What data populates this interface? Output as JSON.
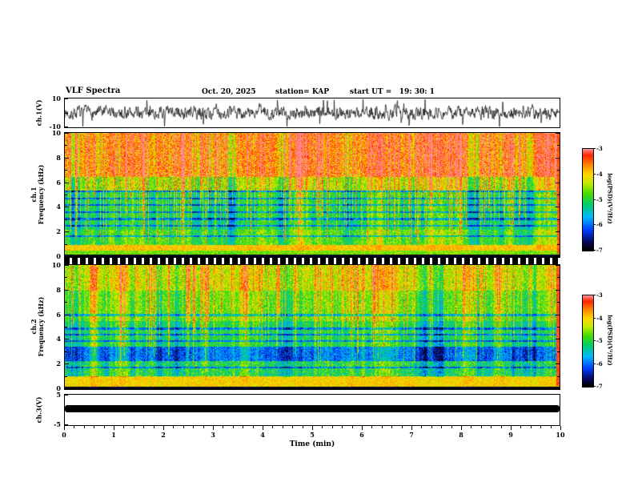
{
  "header": {
    "title": "VLF Spectra",
    "date": "Oct. 20, 2025",
    "station": "station= KAP",
    "start_ut": "start UT =   19: 30: 1"
  },
  "labels": {
    "ch1_wave": "ch.1(V)",
    "ch1": "ch.1",
    "ch2": "ch.2",
    "freq": "Frequency (kHz)",
    "ch3": "ch.3(V)",
    "time": "Time (min)",
    "colorbar": "log(PSD)(V²/Hz)"
  },
  "axes": {
    "x_tick_values": [
      0,
      1,
      2,
      3,
      4,
      5,
      6,
      7,
      8,
      9,
      10
    ],
    "spec_y_tick_values": [
      0,
      1,
      2,
      3,
      4,
      5,
      6,
      7,
      8,
      9,
      10
    ],
    "spec_y_label_values": [
      0,
      2,
      4,
      6,
      8,
      10
    ],
    "wave_y_ticks": [
      {
        "v": 10,
        "label": "10"
      },
      {
        "v": 0,
        "label": ""
      },
      {
        "v": -10,
        "label": "-10"
      }
    ],
    "ch3_y_ticks": [
      {
        "v": 5,
        "label": "5"
      },
      {
        "v": 0,
        "label": ""
      },
      {
        "v": -5,
        "label": "-5"
      }
    ],
    "colorbar_tick_labels": [
      "-3",
      "-4",
      "-5",
      "-6",
      "-7"
    ]
  },
  "colormap": {
    "vmin": -7,
    "vmax": -3,
    "stops": [
      [
        0.0,
        0,
        0,
        0
      ],
      [
        0.08,
        8,
        8,
        90
      ],
      [
        0.2,
        0,
        60,
        255
      ],
      [
        0.33,
        0,
        185,
        255
      ],
      [
        0.45,
        0,
        205,
        110
      ],
      [
        0.56,
        70,
        220,
        0
      ],
      [
        0.66,
        195,
        235,
        0
      ],
      [
        0.75,
        255,
        215,
        0
      ],
      [
        0.85,
        255,
        130,
        0
      ],
      [
        0.94,
        255,
        35,
        0
      ],
      [
        1.0,
        255,
        140,
        140
      ]
    ]
  },
  "chart_data": [
    {
      "type": "line",
      "name": "ch.1 waveform",
      "ylabel": "ch.1(V)",
      "xlim": [
        0,
        10
      ],
      "ylim": [
        -10,
        10
      ],
      "seed": 7,
      "appearance": {
        "color": "#000000",
        "amplitude_v": 4.5,
        "spike_amplitude_v": 9,
        "spike_probability": 0.05
      }
    },
    {
      "type": "heatmap",
      "name": "ch.1 spectrogram",
      "xlabel": "Time (min)",
      "ylabel": "Frequency (kHz)",
      "xlim": [
        0,
        10
      ],
      "ylim": [
        0,
        10
      ],
      "zlim": [
        -7,
        -3
      ],
      "colorbar_label": "log(PSD)(V²/Hz)",
      "seed": 101,
      "bands": [
        {
          "f0": 0,
          "f1": 0.25,
          "level": -6.9,
          "noise": 0.15
        },
        {
          "f0": 0.25,
          "f1": 0.55,
          "level": -4.6,
          "noise": 0.4
        },
        {
          "f0": 0.55,
          "f1": 1.0,
          "level": -3.9,
          "noise": 0.3
        },
        {
          "f0": 1.0,
          "f1": 2.2,
          "level": -4.7,
          "noise": 0.5
        },
        {
          "f0": 2.2,
          "f1": 5.4,
          "level": -5.0,
          "noise": 0.45
        },
        {
          "f0": 5.4,
          "f1": 6.5,
          "level": -4.4,
          "noise": 0.5
        },
        {
          "f0": 6.5,
          "f1": 10.01,
          "level": -3.6,
          "noise": 0.6
        }
      ],
      "harmonic_lines": [
        1.7,
        2.55,
        3.1,
        3.65,
        4.2,
        4.75,
        5.3
      ],
      "streaks": {
        "density": 0.3,
        "min": 0.9,
        "max": 2.2,
        "depth_min": 1.0,
        "depth_max": 5.0
      },
      "edge_hot": {
        "cols": 3,
        "level": -3.4
      }
    },
    {
      "type": "heatmap",
      "name": "ch.2 spectrogram",
      "xlabel": "Time (min)",
      "ylabel": "Frequency (kHz)",
      "xlim": [
        0,
        10
      ],
      "ylim": [
        0,
        10
      ],
      "zlim": [
        -7,
        -3
      ],
      "colorbar_label": "log(PSD)(V²/Hz)",
      "seed": 202,
      "bands": [
        {
          "f0": 0,
          "f1": 0.25,
          "level": -6.9,
          "noise": 0.15
        },
        {
          "f0": 0.25,
          "f1": 1.05,
          "level": -4.0,
          "noise": 0.35
        },
        {
          "f0": 1.05,
          "f1": 2.3,
          "level": -5.0,
          "noise": 0.6
        },
        {
          "f0": 2.3,
          "f1": 3.3,
          "level": -5.9,
          "noise": 0.45
        },
        {
          "f0": 3.3,
          "f1": 5.5,
          "level": -5.0,
          "noise": 0.45
        },
        {
          "f0": 5.5,
          "f1": 8.0,
          "level": -4.6,
          "noise": 0.5
        },
        {
          "f0": 8.0,
          "f1": 10.01,
          "level": -4.2,
          "noise": 0.55
        }
      ],
      "harmonic_lines": [
        1.75,
        3.4,
        3.9,
        4.4,
        4.9,
        6.0
      ],
      "streaks": {
        "density": 0.2,
        "min": 0.7,
        "max": 1.8,
        "depth_min": 2.0,
        "depth_max": 6.0
      },
      "edge_hot": {
        "cols": 4,
        "level": -3.3
      }
    },
    {
      "type": "line",
      "name": "ch.3 waveform",
      "ylabel": "ch.3(V)",
      "xlim": [
        0,
        10
      ],
      "ylim": [
        -5,
        5
      ],
      "saturated": true,
      "bar_center_v": 0.4,
      "bar_halfheight_v": 1.1,
      "appearance": {
        "color": "#000000"
      }
    }
  ]
}
